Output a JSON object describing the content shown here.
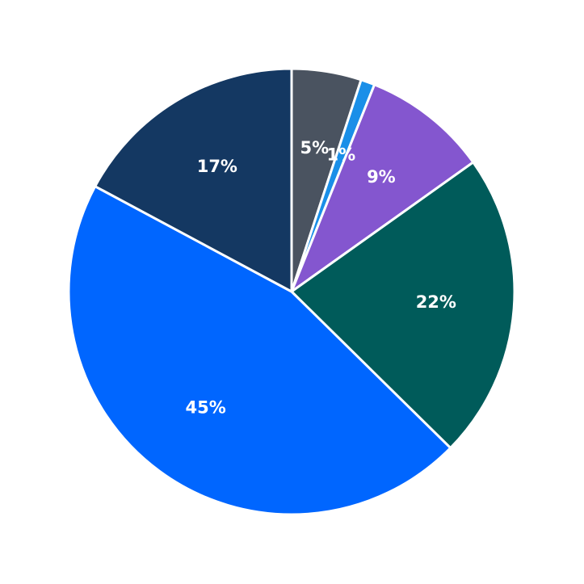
{
  "chart_data": {
    "type": "pie",
    "values": [
      5,
      1,
      9,
      22,
      45,
      17
    ],
    "value_labels": [
      "5%",
      "1%",
      "9%",
      "22%",
      "45%",
      "17%"
    ],
    "colors": [
      "#4a5360",
      "#1a8fe8",
      "#8456cf",
      "#005b5a",
      "#0066ff",
      "#143862"
    ]
  }
}
